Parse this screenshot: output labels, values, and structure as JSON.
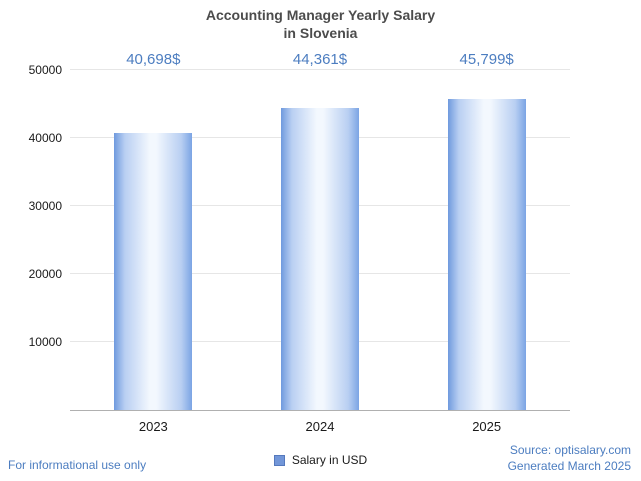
{
  "title": {
    "line1": "Accounting Manager Yearly Salary",
    "line2": "in Slovenia"
  },
  "chart_data": {
    "type": "bar",
    "title": "Accounting Manager Yearly Salary in Slovenia",
    "categories": [
      "2023",
      "2024",
      "2025"
    ],
    "values": [
      40698,
      44361,
      45799
    ],
    "value_labels": [
      "40,698$",
      "44,361$",
      "45,799$"
    ],
    "ylim": [
      0,
      50000
    ],
    "yticks": [
      10000,
      20000,
      30000,
      40000,
      50000
    ],
    "grid": "horizontal",
    "legend_position": "bottom",
    "legend": "Salary in USD",
    "bar_color_edge": "#7ba4e4",
    "bar_color_center": "#f3f8fe"
  },
  "legend": {
    "label": "Salary in USD",
    "swatch_color": "#7296d8"
  },
  "footer": {
    "left_note": "For informational use only",
    "source": "Source: optisalary.com",
    "generated": "Generated March 2025"
  },
  "colors": {
    "accent_blue": "#4c7dc0",
    "title_gray": "#4c4c4c",
    "gridline": "#e6e6e6",
    "axis_line": "#b0b0b0"
  }
}
